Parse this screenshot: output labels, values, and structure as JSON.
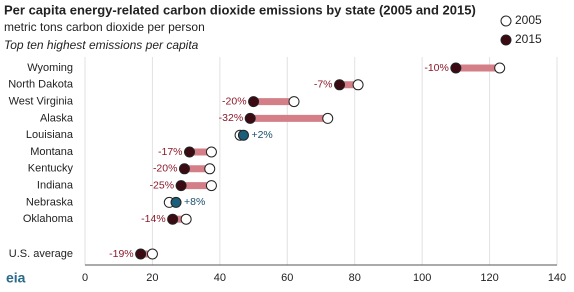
{
  "chart_data": {
    "type": "dumbbell",
    "title": "Per capita energy-related carbon dioxide emissions by state (2005 and 2015)",
    "subtitle": "metric tons carbon dioxide per person",
    "note": "Top ten highest emissions per capita",
    "logo": "eia",
    "categories": [
      "Wyoming",
      "North Dakota",
      "West Virginia",
      "Alaska",
      "Louisiana",
      "Montana",
      "Kentucky",
      "Indiana",
      "Nebraska",
      "Oklahoma",
      "U.S. average"
    ],
    "series": [
      {
        "name": "2005",
        "color": "#ffffff",
        "values": [
          123,
          81,
          62,
          72,
          46,
          37.5,
          37,
          37.5,
          25,
          30,
          20
        ]
      },
      {
        "name": "2015",
        "color": "#3b0a12",
        "values": [
          110,
          75.5,
          50,
          49,
          47,
          31,
          29.5,
          28.5,
          27,
          26,
          16.5
        ]
      }
    ],
    "change_labels": [
      "-10%",
      "-7%",
      "-20%",
      "-32%",
      "+2%",
      "-17%",
      "-20%",
      "-25%",
      "+8%",
      "-14%",
      "-19%"
    ],
    "decrease_color": "#d47f88",
    "increase_color": "#9fc6d6",
    "decrease_label_color": "#8b1a2a",
    "increase_label_color": "#1a4f6e",
    "increase_dot_color": "#1a5e7a",
    "xlim": [
      0,
      140
    ],
    "xticks": [
      0,
      20,
      40,
      60,
      80,
      100,
      120,
      140
    ],
    "grid": true
  }
}
